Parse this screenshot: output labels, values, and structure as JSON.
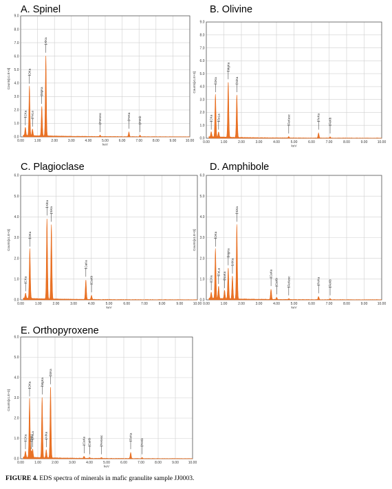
{
  "figure": {
    "caption_label": "FIGURE 4.",
    "caption_text": " EDS spectra of minerals in mafic granulite sample JJ0003."
  },
  "chart_data": [
    {
      "type": "line",
      "title": "A. Spinel",
      "xlabel": "keV",
      "ylabel": "Counts[x1.E+3]",
      "xlim": [
        0,
        10
      ],
      "ylim": [
        0,
        9
      ],
      "x_ticks": [
        "0.00",
        "1.00",
        "2.00",
        "3.00",
        "4.00",
        "5.00",
        "6.00",
        "7.00",
        "8.00",
        "9.00",
        "10.00"
      ],
      "y_ticks": [
        "0.0",
        "1.0",
        "2.0",
        "3.0",
        "4.0",
        "5.0",
        "6.0",
        "7.0",
        "8.0",
        "9.0"
      ],
      "color": "#e86a1a",
      "peaks": [
        {
          "label": "CKa",
          "x": 0.28,
          "y": 0.6
        },
        {
          "label": "OKa",
          "x": 0.52,
          "y": 3.7
        },
        {
          "label": "FeLa",
          "x": 0.7,
          "y": 0.5
        },
        {
          "label": "MgKa",
          "x": 1.25,
          "y": 2.2
        },
        {
          "label": "AlKa",
          "x": 1.49,
          "y": 6.0
        },
        {
          "label": "FeKesc",
          "x": 4.7,
          "y": 0.1
        },
        {
          "label": "FeKa",
          "x": 6.4,
          "y": 0.35
        },
        {
          "label": "FeKb",
          "x": 7.06,
          "y": 0.1
        }
      ]
    },
    {
      "type": "line",
      "title": "B. Olivine",
      "xlabel": "keV",
      "ylabel": "Counts[x1.E+3]",
      "xlim": [
        0,
        10
      ],
      "ylim": [
        0,
        9
      ],
      "x_ticks": [
        "0.00",
        "1.00",
        "2.00",
        "3.00",
        "4.00",
        "5.00",
        "6.00",
        "7.00",
        "8.00",
        "9.00",
        "10.00"
      ],
      "y_ticks": [
        "0.0",
        "1.0",
        "2.0",
        "3.0",
        "4.0",
        "5.0",
        "6.0",
        "7.0",
        "8.0",
        "9.0"
      ],
      "color": "#e86a1a",
      "peaks": [
        {
          "label": "CKa",
          "x": 0.28,
          "y": 0.4
        },
        {
          "label": "OKa",
          "x": 0.52,
          "y": 3.3
        },
        {
          "label": "FeLa",
          "x": 0.7,
          "y": 0.4
        },
        {
          "label": "MgKa",
          "x": 1.25,
          "y": 4.3
        },
        {
          "label": "SiKa",
          "x": 1.74,
          "y": 3.3
        },
        {
          "label": "FeKesc",
          "x": 4.7,
          "y": 0.1
        },
        {
          "label": "FeKa",
          "x": 6.4,
          "y": 0.4
        },
        {
          "label": "FeKb",
          "x": 7.06,
          "y": 0.1
        }
      ]
    },
    {
      "type": "line",
      "title": "C. Plagioclase",
      "xlabel": "keV",
      "ylabel": "Counts[x1.E+3]",
      "xlim": [
        0,
        10
      ],
      "ylim": [
        0,
        6
      ],
      "x_ticks": [
        "0.00",
        "1.00",
        "2.00",
        "3.00",
        "4.00",
        "5.00",
        "6.00",
        "7.00",
        "8.00",
        "9.00",
        "10.00"
      ],
      "y_ticks": [
        "0.0",
        "1.0",
        "2.0",
        "3.0",
        "4.0",
        "5.0",
        "6.0"
      ],
      "color": "#e86a1a",
      "peaks": [
        {
          "label": "CKa",
          "x": 0.28,
          "y": 0.25
        },
        {
          "label": "OKa",
          "x": 0.52,
          "y": 2.4
        },
        {
          "label": "AlKa",
          "x": 1.49,
          "y": 3.9
        },
        {
          "label": "SiKa",
          "x": 1.74,
          "y": 3.6
        },
        {
          "label": "CaKa",
          "x": 3.69,
          "y": 0.95
        },
        {
          "label": "CaKb",
          "x": 4.01,
          "y": 0.2
        }
      ]
    },
    {
      "type": "line",
      "title": "D. Amphibole",
      "xlabel": "keV",
      "ylabel": "Counts[x1.E+3]",
      "xlim": [
        0,
        10
      ],
      "ylim": [
        0,
        6
      ],
      "x_ticks": [
        "0.00",
        "1.00",
        "2.00",
        "3.00",
        "4.00",
        "5.00",
        "6.00",
        "7.00",
        "8.00",
        "9.00",
        "10.00"
      ],
      "y_ticks": [
        "0.0",
        "1.0",
        "2.0",
        "3.0",
        "4.0",
        "5.0",
        "6.0"
      ],
      "color": "#e86a1a",
      "peaks": [
        {
          "label": "CKa",
          "x": 0.28,
          "y": 0.3
        },
        {
          "label": "OKa",
          "x": 0.52,
          "y": 2.4
        },
        {
          "label": "FeLa",
          "x": 0.7,
          "y": 0.6
        },
        {
          "label": "NaKa",
          "x": 1.04,
          "y": 0.4
        },
        {
          "label": "MgKa",
          "x": 1.25,
          "y": 1.5
        },
        {
          "label": "AlKa",
          "x": 1.49,
          "y": 1.1
        },
        {
          "label": "SiKa",
          "x": 1.74,
          "y": 3.6
        },
        {
          "label": "CaKa",
          "x": 3.69,
          "y": 0.5
        },
        {
          "label": "CaKb",
          "x": 4.01,
          "y": 0.1
        },
        {
          "label": "FeKesc",
          "x": 4.7,
          "y": 0.05
        },
        {
          "label": "FeKa",
          "x": 6.4,
          "y": 0.15
        },
        {
          "label": "FeKb",
          "x": 7.06,
          "y": 0.05
        }
      ]
    },
    {
      "type": "line",
      "title": "E. Orthopyroxene",
      "xlabel": "keV",
      "ylabel": "Counts[x1.E+3]",
      "xlim": [
        0,
        10
      ],
      "ylim": [
        0,
        6
      ],
      "x_ticks": [
        "0.00",
        "1.00",
        "2.00",
        "3.00",
        "4.00",
        "5.00",
        "6.00",
        "7.00",
        "8.00",
        "9.00",
        "10.00"
      ],
      "y_ticks": [
        "0.0",
        "1.0",
        "2.0",
        "3.0",
        "4.0",
        "5.0",
        "6.0"
      ],
      "color": "#e86a1a",
      "peaks": [
        {
          "label": "CKa",
          "x": 0.28,
          "y": 0.3
        },
        {
          "label": "OKa",
          "x": 0.52,
          "y": 2.9
        },
        {
          "label": "FeLl",
          "x": 0.62,
          "y": 0.3
        },
        {
          "label": "FeLa",
          "x": 0.7,
          "y": 0.4
        },
        {
          "label": "MgKa",
          "x": 1.25,
          "y": 3.0
        },
        {
          "label": "AlKa",
          "x": 1.49,
          "y": 0.4
        },
        {
          "label": "SiKa",
          "x": 1.74,
          "y": 3.5
        },
        {
          "label": "CaKa",
          "x": 3.69,
          "y": 0.1
        },
        {
          "label": "CaKb",
          "x": 4.01,
          "y": 0.05
        },
        {
          "label": "FeKesc",
          "x": 4.7,
          "y": 0.05
        },
        {
          "label": "FeKa",
          "x": 6.4,
          "y": 0.3
        },
        {
          "label": "FeKb",
          "x": 7.06,
          "y": 0.05
        }
      ]
    }
  ]
}
